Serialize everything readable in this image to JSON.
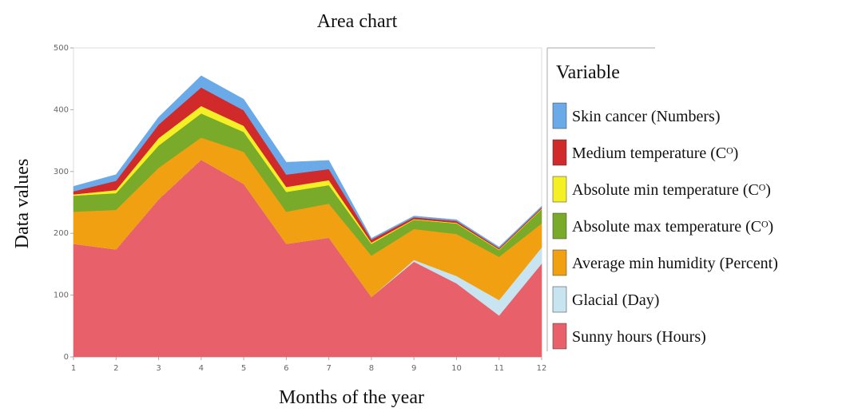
{
  "chart_data": {
    "type": "area",
    "title": "Area chart",
    "xlabel": "Months of the year",
    "ylabel": "Data values",
    "legend_title": "Variable",
    "stacked": true,
    "x": [
      1,
      2,
      3,
      4,
      5,
      6,
      7,
      8,
      9,
      10,
      11,
      12
    ],
    "xlim": [
      1,
      12
    ],
    "xticks": [
      1,
      2,
      3,
      4,
      5,
      6,
      7,
      8,
      9,
      10,
      11,
      12
    ],
    "ylim": [
      0,
      500
    ],
    "yticks": [
      0,
      100,
      200,
      300,
      400,
      500
    ],
    "series": [
      {
        "name": "Skin cancer (Numbers)",
        "color": "#6aaae8",
        "values": [
          8,
          10,
          12,
          19,
          18,
          20,
          14,
          2,
          2,
          2,
          2,
          2
        ]
      },
      {
        "name": "Medium temperature (Cᴼ)",
        "color": "#d02a2a",
        "values": [
          5,
          15,
          22,
          30,
          25,
          20,
          18,
          5,
          3,
          3,
          2,
          2
        ]
      },
      {
        "name": "Absolute min temperature (Cᴼ)",
        "color": "#f5f025",
        "values": [
          2,
          5,
          12,
          12,
          10,
          8,
          8,
          2,
          1,
          1,
          1,
          1
        ]
      },
      {
        "name": "Absolute max temperature (Cᴼ)",
        "color": "#7aaa2a",
        "values": [
          26,
          27,
          36,
          39,
          32,
          32,
          30,
          19,
          15,
          17,
          11,
          23
        ]
      },
      {
        "name": "Average min humidity (Percent)",
        "color": "#f0a010",
        "values": [
          52,
          64,
          51,
          36,
          52,
          52,
          55,
          67,
          50,
          68,
          70,
          39
        ]
      },
      {
        "name": "Glacial (Day)",
        "color": "#c8e4f0",
        "values": [
          0,
          0,
          0,
          0,
          0,
          0,
          0,
          0,
          3,
          12,
          25,
          26
        ]
      },
      {
        "name": "Sunny hours (Hours)",
        "color": "#e8616a",
        "values": [
          183,
          174,
          255,
          319,
          280,
          183,
          193,
          97,
          154,
          119,
          67,
          151
        ]
      }
    ]
  }
}
